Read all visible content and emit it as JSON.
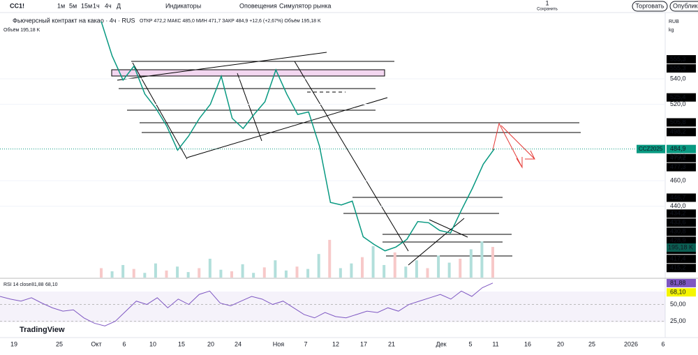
{
  "toolbar": {
    "symbol": "CC1!",
    "intervals": [
      "1м",
      "5м",
      "15м",
      "1ч",
      "4ч",
      "Д"
    ],
    "indicators": "Индикаторы",
    "alerts": "Оповещения",
    "replay": "Симулятор рынка",
    "save_count": "1",
    "save": "Сохранить",
    "trade": "Торговать",
    "publish": "Опублико"
  },
  "legend": {
    "title": "Фьючерсный контракт на какао · 4ч · RUS",
    "ohlc": "ОТКР 472,2 МАКС 485,0 МИН 471,7 ЗАКР 484,9 +12,6 (+2,67%) Объём 195,18 K",
    "volume": "Объём 195,18 K"
  },
  "currency": "RUB",
  "unit": "kg",
  "logo": "TradingView",
  "chart_data": {
    "type": "line",
    "color": "#089981",
    "values": [
      585,
      558,
      539,
      550,
      528,
      517,
      503,
      484,
      495,
      509,
      520,
      542,
      509,
      501,
      512,
      522,
      547,
      528,
      512,
      514,
      487,
      443,
      441,
      444,
      416,
      410,
      405,
      408,
      414,
      428,
      427,
      421,
      419,
      437,
      454,
      473,
      484.9
    ],
    "ylim": [
      384,
      592
    ],
    "yticks": [
      {
        "value": 540,
        "label": "540,0"
      },
      {
        "value": 520,
        "label": "520,0"
      },
      {
        "value": 460,
        "label": "460,0"
      },
      {
        "value": 440,
        "label": "440,0"
      }
    ],
    "price_tags": [
      {
        "value": 555.3,
        "label": "555,3"
      },
      {
        "value": 555.3,
        "label": "555,3"
      },
      {
        "value": 525.4,
        "label": "525,4"
      },
      {
        "value": 505.8,
        "label": "505,8"
      },
      {
        "value": 498.2,
        "label": "498,2"
      },
      {
        "value": 484.9,
        "label": "484,9"
      },
      {
        "value": 479.2,
        "label": "479,2"
      },
      {
        "value": 477.3,
        "label": "477,3"
      },
      {
        "value": 446.7,
        "label": "446,7"
      },
      {
        "value": 434.2,
        "label": "434,2"
      },
      {
        "value": 433.6,
        "label": "433,6"
      },
      {
        "value": 430.8,
        "label": "430,8"
      },
      {
        "value": 428.9,
        "label": "428,9"
      },
      {
        "value": 420.5,
        "label": "420,5"
      },
      {
        "value": 417.4,
        "label": "417,4"
      },
      {
        "value": 415.2,
        "label": "415,2"
      }
    ],
    "ticker": "CCZ2025",
    "countdown": "59:13",
    "volume_tag": "195,18 K",
    "volume": {
      "ylim": [
        0,
        355
      ],
      "values": [
        60,
        40,
        80,
        55,
        30,
        90,
        45,
        70,
        35,
        60,
        120,
        50,
        40,
        85,
        30,
        65,
        110,
        45,
        70,
        55,
        150,
        240,
        60,
        90,
        130,
        200,
        80,
        160,
        70,
        110,
        60,
        140,
        95,
        120,
        180,
        230,
        195.18
      ]
    },
    "rsi": {
      "label": "RSI 14 close",
      "value_label": "81,88",
      "ma_label": "68,10",
      "ylim": [
        10,
        88
      ],
      "yticks": [
        {
          "value": 81.88,
          "label": "81,88"
        },
        {
          "value": 68.1,
          "label": "68,10"
        },
        {
          "value": 50,
          "label": "50,00"
        },
        {
          "value": 25,
          "label": "25,00"
        }
      ],
      "values": [
        62,
        58,
        55,
        60,
        52,
        45,
        40,
        42,
        30,
        22,
        18,
        25,
        40,
        55,
        50,
        60,
        45,
        58,
        50,
        65,
        70,
        52,
        48,
        55,
        62,
        58,
        50,
        55,
        45,
        35,
        30,
        38,
        32,
        30,
        35,
        40,
        38,
        45,
        40,
        50,
        55,
        60,
        65,
        58,
        70,
        62,
        75,
        82
      ]
    },
    "x_labels": [
      "19",
      "25",
      "Окт",
      "6",
      "10",
      "15",
      "20",
      "24",
      "Ноя",
      "7",
      "12",
      "17",
      "21",
      "Дек",
      "5",
      "11",
      "16",
      "20",
      "25",
      "2026",
      "6"
    ]
  }
}
